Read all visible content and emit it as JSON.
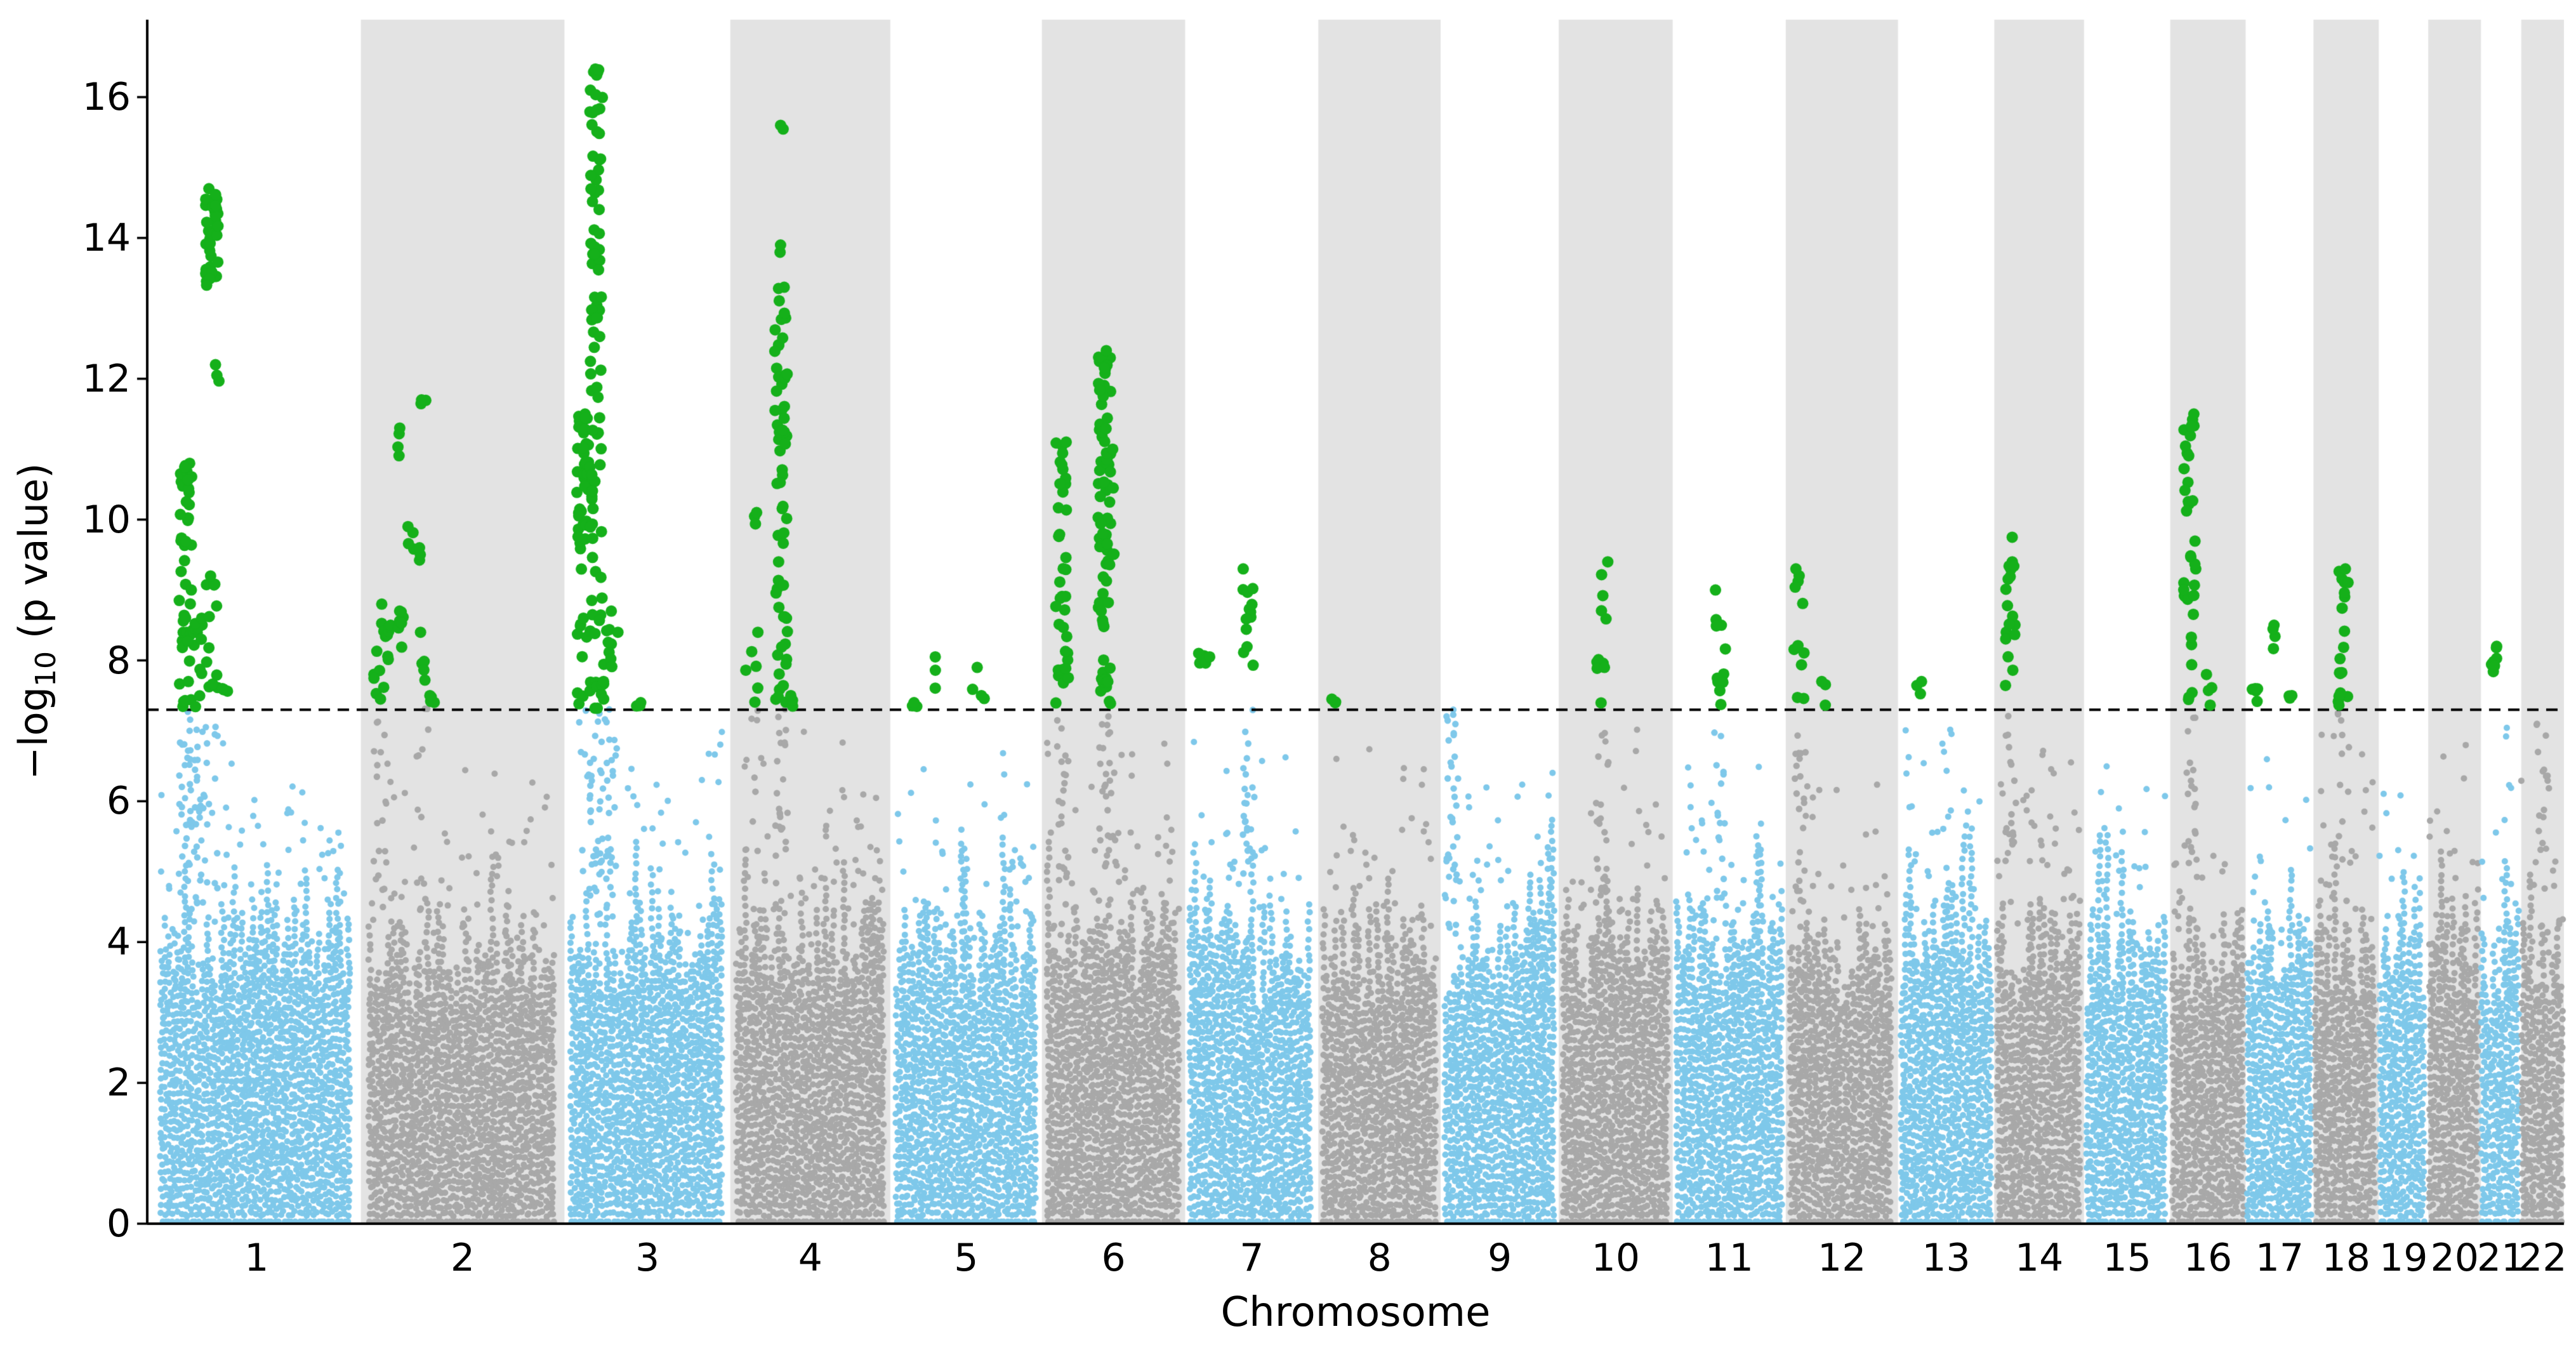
{
  "chart_data": {
    "type": "scatter",
    "subtype": "manhattan",
    "title": "",
    "xlabel": "Chromosome",
    "ylabel": "−log10 (p value)",
    "ylabel_parts": {
      "pre": "−log",
      "sub": "10",
      "post": " (p value)"
    },
    "ylim": [
      0,
      17.1
    ],
    "yticks": [
      0,
      2,
      4,
      6,
      8,
      10,
      12,
      14,
      16
    ],
    "threshold": 7.3,
    "threshold_style": "dashed-black-horizontal",
    "legend": "none",
    "grid": false,
    "colors": {
      "odd_chromosome": "#7EC8EA",
      "even_chromosome": "#A8A8A8",
      "significant": "#15B01A",
      "band": "#E3E3E3",
      "axis": "#000000",
      "background": "#FFFFFF"
    },
    "chromosomes": [
      {
        "label": "1",
        "size": 249,
        "peaks": [
          {
            "pos": 0.125,
            "max": 10.8,
            "n": 30
          },
          {
            "pos": 0.155,
            "max": 9.0,
            "n": 12
          },
          {
            "pos": 0.185,
            "max": 8.6,
            "n": 10
          },
          {
            "pos": 0.225,
            "max": 8.3,
            "n": 8
          },
          {
            "pos": 0.265,
            "max": 14.7,
            "n": 20,
            "minv": 13.3
          },
          {
            "pos": 0.265,
            "max": 9.2,
            "n": 10
          },
          {
            "pos": 0.295,
            "max": 12.2,
            "n": 2,
            "minv": 11.9
          },
          {
            "pos": 0.33,
            "max": 7.6,
            "n": 3
          }
        ]
      },
      {
        "label": "2",
        "size": 243,
        "peaks": [
          {
            "pos": 0.05,
            "max": 8.8,
            "n": 14
          },
          {
            "pos": 0.1,
            "max": 8.5,
            "n": 6
          },
          {
            "pos": 0.165,
            "max": 11.3,
            "n": 3,
            "minv": 10.9
          },
          {
            "pos": 0.165,
            "max": 8.7,
            "n": 6
          },
          {
            "pos": 0.22,
            "max": 9.9,
            "n": 3,
            "minv": 9.4
          },
          {
            "pos": 0.255,
            "max": 9.6,
            "n": 2,
            "minv": 9.3
          },
          {
            "pos": 0.285,
            "max": 11.7,
            "n": 2,
            "minv": 11.5
          },
          {
            "pos": 0.285,
            "max": 8.4,
            "n": 8
          },
          {
            "pos": 0.335,
            "max": 7.5,
            "n": 3
          }
        ]
      },
      {
        "label": "3",
        "size": 198,
        "peaks": [
          {
            "pos": 0.075,
            "max": 11.5,
            "n": 22,
            "minv": 9.0
          },
          {
            "pos": 0.075,
            "max": 8.6,
            "n": 8
          },
          {
            "pos": 0.16,
            "max": 16.4,
            "n": 60
          },
          {
            "pos": 0.235,
            "max": 8.7,
            "n": 14
          },
          {
            "pos": 0.27,
            "max": 8.4,
            "n": 8
          },
          {
            "pos": 0.44,
            "max": 7.4,
            "n": 2
          }
        ]
      },
      {
        "label": "4",
        "size": 191,
        "peaks": [
          {
            "pos": 0.1,
            "max": 8.4,
            "n": 8
          },
          {
            "pos": 0.135,
            "max": 10.1,
            "n": 2,
            "minv": 9.9
          },
          {
            "pos": 0.3,
            "max": 13.3,
            "n": 42
          },
          {
            "pos": 0.29,
            "max": 13.9,
            "n": 1
          },
          {
            "pos": 0.3,
            "max": 15.6,
            "n": 1
          },
          {
            "pos": 0.385,
            "max": 7.5,
            "n": 2
          }
        ]
      },
      {
        "label": "5",
        "size": 181,
        "peaks": [
          {
            "pos": 0.13,
            "max": 7.4,
            "n": 2
          },
          {
            "pos": 0.28,
            "max": 8.05,
            "n": 2
          },
          {
            "pos": 0.56,
            "max": 7.9,
            "n": 1
          },
          {
            "pos": 0.62,
            "max": 7.5,
            "n": 1
          }
        ]
      },
      {
        "label": "6",
        "size": 171,
        "peaks": [
          {
            "pos": 0.105,
            "max": 11.1,
            "n": 30
          },
          {
            "pos": 0.43,
            "max": 12.4,
            "n": 48
          },
          {
            "pos": 0.47,
            "max": 11.0,
            "n": 10
          }
        ]
      },
      {
        "label": "7",
        "size": 159,
        "peaks": [
          {
            "pos": 0.085,
            "max": 8.1,
            "n": 3,
            "minv": 7.9
          },
          {
            "pos": 0.13,
            "max": 8.05,
            "n": 2,
            "minv": 7.9
          },
          {
            "pos": 0.475,
            "max": 9.3,
            "n": 18
          }
        ]
      },
      {
        "label": "8",
        "size": 146,
        "peaks": [
          {
            "pos": 0.09,
            "max": 7.45,
            "n": 2
          }
        ]
      },
      {
        "label": "9",
        "size": 141,
        "peaks": [
          {
            "pos": 0.06,
            "max": 7.3,
            "n": 16,
            "minv": 3.8
          }
        ]
      },
      {
        "label": "10",
        "size": 136,
        "peaks": [
          {
            "pos": 0.37,
            "max": 9.4,
            "n": 14
          }
        ]
      },
      {
        "label": "11",
        "size": 135,
        "peaks": [
          {
            "pos": 0.41,
            "max": 9.0,
            "n": 14
          }
        ]
      },
      {
        "label": "12",
        "size": 134,
        "peaks": [
          {
            "pos": 0.09,
            "max": 9.3,
            "n": 16
          },
          {
            "pos": 0.31,
            "max": 7.7,
            "n": 2
          }
        ]
      },
      {
        "label": "13",
        "size": 115,
        "peaks": [
          {
            "pos": 0.19,
            "max": 7.7,
            "n": 2
          }
        ]
      },
      {
        "label": "14",
        "size": 107,
        "peaks": [
          {
            "pos": 0.14,
            "max": 9.75,
            "n": 18
          }
        ]
      },
      {
        "label": "15",
        "size": 103,
        "peaks": []
      },
      {
        "label": "16",
        "size": 90,
        "peaks": [
          {
            "pos": 0.24,
            "max": 11.5,
            "n": 28
          },
          {
            "pos": 0.52,
            "max": 7.8,
            "n": 3
          }
        ]
      },
      {
        "label": "17",
        "size": 81,
        "peaks": [
          {
            "pos": 0.11,
            "max": 7.6,
            "n": 4
          },
          {
            "pos": 0.44,
            "max": 8.5,
            "n": 3,
            "minv": 8.1
          },
          {
            "pos": 0.68,
            "max": 7.5,
            "n": 2
          }
        ]
      },
      {
        "label": "18",
        "size": 78,
        "peaks": [
          {
            "pos": 0.46,
            "max": 9.3,
            "n": 16
          }
        ]
      },
      {
        "label": "19",
        "size": 59,
        "peaks": []
      },
      {
        "label": "20",
        "size": 63,
        "peaks": []
      },
      {
        "label": "21",
        "size": 48,
        "peaks": [
          {
            "pos": 0.3,
            "max": 8.2,
            "n": 7
          }
        ]
      },
      {
        "label": "22",
        "size": 51,
        "peaks": [
          {
            "pos": 0.5,
            "max": 7.1,
            "n": 10,
            "minv": 3.8
          }
        ]
      }
    ]
  }
}
